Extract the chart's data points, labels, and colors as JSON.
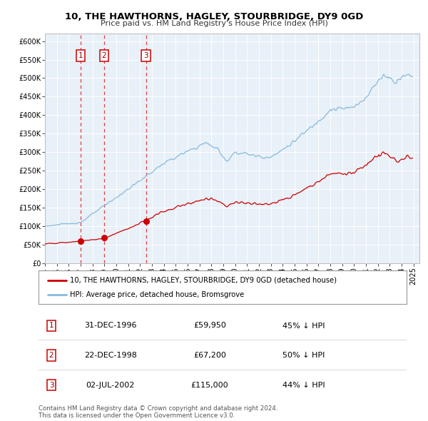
{
  "title": "10, THE HAWTHORNS, HAGLEY, STOURBRIDGE, DY9 0GD",
  "subtitle": "Price paid vs. HM Land Registry's House Price Index (HPI)",
  "legend_property": "10, THE HAWTHORNS, HAGLEY, STOURBRIDGE, DY9 0GD (detached house)",
  "legend_hpi": "HPI: Average price, detached house, Bromsgrove",
  "footnote1": "Contains HM Land Registry data © Crown copyright and database right 2024.",
  "footnote2": "This data is licensed under the Open Government Licence v3.0.",
  "property_color": "#cc0000",
  "hpi_color": "#88bbdd",
  "background_color": "#e8f0f8",
  "grid_color": "#ffffff",
  "transactions": [
    {
      "num": 1,
      "date": "31-DEC-1996",
      "price": 59950,
      "year": 1996.99,
      "pct": "45% ↓ HPI"
    },
    {
      "num": 2,
      "date": "22-DEC-1998",
      "price": 67200,
      "year": 1998.97,
      "pct": "50% ↓ HPI"
    },
    {
      "num": 3,
      "date": "02-JUL-2002",
      "price": 115000,
      "year": 2002.5,
      "pct": "44% ↓ HPI"
    }
  ],
  "ylim": [
    0,
    620000
  ],
  "yticks": [
    0,
    50000,
    100000,
    150000,
    200000,
    250000,
    300000,
    350000,
    400000,
    450000,
    500000,
    550000,
    600000
  ],
  "xlim_start": 1994.0,
  "xlim_end": 2025.5
}
